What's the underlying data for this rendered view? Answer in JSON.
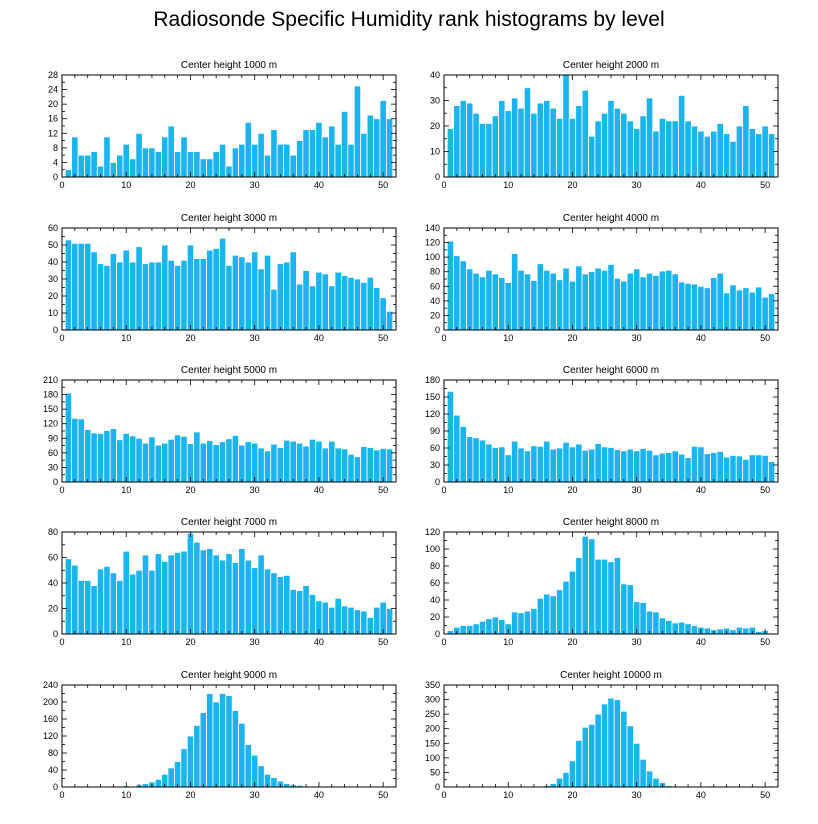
{
  "title": "Radiosonde Specific Humidity rank histograms by level",
  "colors": {
    "bar": "#1ab4ee",
    "axis": "#000000",
    "bar_gap": "#ffffff"
  },
  "chart_data": [
    {
      "type": "bar",
      "title": "Center height 1000 m",
      "xlabel": "",
      "ylabel": "",
      "xlim": [
        0,
        52
      ],
      "ylim": [
        0,
        28
      ],
      "xticks": [
        0,
        10,
        20,
        30,
        40,
        50
      ],
      "yticks": [
        0,
        4,
        8,
        12,
        16,
        20,
        24,
        28
      ],
      "categories": [
        1,
        2,
        3,
        4,
        5,
        6,
        7,
        8,
        9,
        10,
        11,
        12,
        13,
        14,
        15,
        16,
        17,
        18,
        19,
        20,
        21,
        22,
        23,
        24,
        25,
        26,
        27,
        28,
        29,
        30,
        31,
        32,
        33,
        34,
        35,
        36,
        37,
        38,
        39,
        40,
        41,
        42,
        43,
        44,
        45,
        46,
        47,
        48,
        49,
        50,
        51
      ],
      "values": [
        2,
        11,
        6,
        6,
        7,
        3,
        11,
        4,
        6,
        9,
        5,
        12,
        8,
        8,
        7,
        11,
        14,
        7,
        11,
        7,
        7,
        5,
        5,
        7,
        9,
        3,
        8,
        9,
        15,
        9,
        12,
        6,
        13,
        9,
        9,
        6,
        10,
        13,
        13,
        15,
        11,
        14,
        9,
        18,
        9,
        25,
        12,
        17,
        16,
        21,
        16
      ]
    },
    {
      "type": "bar",
      "title": "Center height 2000 m",
      "xlabel": "",
      "ylabel": "",
      "xlim": [
        0,
        52
      ],
      "ylim": [
        0,
        40
      ],
      "xticks": [
        0,
        10,
        20,
        30,
        40,
        50
      ],
      "yticks": [
        0,
        10,
        20,
        30,
        40
      ],
      "categories": [
        1,
        2,
        3,
        4,
        5,
        6,
        7,
        8,
        9,
        10,
        11,
        12,
        13,
        14,
        15,
        16,
        17,
        18,
        19,
        20,
        21,
        22,
        23,
        24,
        25,
        26,
        27,
        28,
        29,
        30,
        31,
        32,
        33,
        34,
        35,
        36,
        37,
        38,
        39,
        40,
        41,
        42,
        43,
        44,
        45,
        46,
        47,
        48,
        49,
        50,
        51
      ],
      "values": [
        19,
        28,
        30,
        29,
        25,
        21,
        21,
        24,
        30,
        26,
        31,
        27,
        35,
        25,
        29,
        30,
        27,
        23,
        40,
        23,
        28,
        34,
        16,
        22,
        25,
        30,
        27,
        25,
        22,
        19,
        24,
        31,
        18,
        23,
        22,
        22,
        32,
        22,
        20,
        18,
        16,
        18,
        21,
        17,
        14,
        20,
        28,
        19,
        17,
        20,
        17
      ]
    },
    {
      "type": "bar",
      "title": "Center height 3000 m",
      "xlabel": "",
      "ylabel": "",
      "xlim": [
        0,
        52
      ],
      "ylim": [
        0,
        60
      ],
      "xticks": [
        0,
        10,
        20,
        30,
        40,
        50
      ],
      "yticks": [
        0,
        10,
        20,
        30,
        40,
        50,
        60
      ],
      "categories": [
        1,
        2,
        3,
        4,
        5,
        6,
        7,
        8,
        9,
        10,
        11,
        12,
        13,
        14,
        15,
        16,
        17,
        18,
        19,
        20,
        21,
        22,
        23,
        24,
        25,
        26,
        27,
        28,
        29,
        30,
        31,
        32,
        33,
        34,
        35,
        36,
        37,
        38,
        39,
        40,
        41,
        42,
        43,
        44,
        45,
        46,
        47,
        48,
        49,
        50,
        51
      ],
      "values": [
        53,
        51,
        51,
        51,
        46,
        39,
        38,
        45,
        40,
        47,
        40,
        49,
        39,
        40,
        40,
        50,
        41,
        38,
        41,
        50,
        42,
        42,
        47,
        48,
        54,
        38,
        44,
        43,
        40,
        46,
        36,
        44,
        24,
        39,
        40,
        46,
        27,
        35,
        26,
        34,
        33,
        26,
        34,
        32,
        31,
        30,
        28,
        31,
        25,
        19,
        11
      ]
    },
    {
      "type": "bar",
      "title": "Center height 4000 m",
      "xlabel": "",
      "ylabel": "",
      "xlim": [
        0,
        52
      ],
      "ylim": [
        0,
        140
      ],
      "xticks": [
        0,
        10,
        20,
        30,
        40,
        50
      ],
      "yticks": [
        0,
        20,
        40,
        60,
        80,
        100,
        120,
        140
      ],
      "categories": [
        1,
        2,
        3,
        4,
        5,
        6,
        7,
        8,
        9,
        10,
        11,
        12,
        13,
        14,
        15,
        16,
        17,
        18,
        19,
        20,
        21,
        22,
        23,
        24,
        25,
        26,
        27,
        28,
        29,
        30,
        31,
        32,
        33,
        34,
        35,
        36,
        37,
        38,
        39,
        40,
        41,
        42,
        43,
        44,
        45,
        46,
        47,
        48,
        49,
        50,
        51
      ],
      "values": [
        122,
        102,
        95,
        84,
        78,
        73,
        82,
        77,
        72,
        65,
        105,
        82,
        77,
        68,
        91,
        82,
        78,
        69,
        85,
        67,
        88,
        77,
        80,
        85,
        82,
        90,
        71,
        67,
        78,
        84,
        73,
        78,
        75,
        81,
        82,
        77,
        66,
        64,
        63,
        60,
        58,
        72,
        78,
        51,
        62,
        55,
        58,
        52,
        59,
        45,
        50
      ]
    },
    {
      "type": "bar",
      "title": "Center height 5000 m",
      "xlabel": "",
      "ylabel": "",
      "xlim": [
        0,
        52
      ],
      "ylim": [
        0,
        210
      ],
      "xticks": [
        0,
        10,
        20,
        30,
        40,
        50
      ],
      "yticks": [
        0,
        30,
        60,
        90,
        120,
        150,
        180,
        210
      ],
      "categories": [
        1,
        2,
        3,
        4,
        5,
        6,
        7,
        8,
        9,
        10,
        11,
        12,
        13,
        14,
        15,
        16,
        17,
        18,
        19,
        20,
        21,
        22,
        23,
        24,
        25,
        26,
        27,
        28,
        29,
        30,
        31,
        32,
        33,
        34,
        35,
        36,
        37,
        38,
        39,
        40,
        41,
        42,
        43,
        44,
        45,
        46,
        47,
        48,
        49,
        50,
        51
      ],
      "values": [
        183,
        131,
        130,
        108,
        101,
        100,
        106,
        110,
        87,
        100,
        95,
        90,
        80,
        93,
        76,
        80,
        88,
        97,
        94,
        79,
        103,
        80,
        85,
        77,
        83,
        89,
        96,
        76,
        83,
        80,
        70,
        64,
        78,
        71,
        86,
        84,
        80,
        74,
        88,
        84,
        70,
        84,
        70,
        68,
        57,
        52,
        73,
        71,
        66,
        69,
        68
      ]
    },
    {
      "type": "bar",
      "title": "Center height 6000 m",
      "xlabel": "",
      "ylabel": "",
      "xlim": [
        0,
        52
      ],
      "ylim": [
        0,
        180
      ],
      "xticks": [
        0,
        10,
        20,
        30,
        40,
        50
      ],
      "yticks": [
        0,
        30,
        60,
        90,
        120,
        150,
        180
      ],
      "categories": [
        1,
        2,
        3,
        4,
        5,
        6,
        7,
        8,
        9,
        10,
        11,
        12,
        13,
        14,
        15,
        16,
        17,
        18,
        19,
        20,
        21,
        22,
        23,
        24,
        25,
        26,
        27,
        28,
        29,
        30,
        31,
        32,
        33,
        34,
        35,
        36,
        37,
        38,
        39,
        40,
        41,
        42,
        43,
        44,
        45,
        46,
        47,
        48,
        49,
        50,
        51
      ],
      "values": [
        160,
        118,
        98,
        80,
        78,
        74,
        67,
        61,
        62,
        48,
        72,
        60,
        55,
        64,
        63,
        72,
        58,
        60,
        70,
        62,
        67,
        56,
        58,
        68,
        62,
        61,
        57,
        55,
        58,
        55,
        59,
        56,
        48,
        51,
        52,
        55,
        49,
        43,
        63,
        62,
        50,
        52,
        54,
        44,
        47,
        46,
        40,
        48,
        48,
        47,
        36
      ]
    },
    {
      "type": "bar",
      "title": "Center height 7000 m",
      "xlabel": "",
      "ylabel": "",
      "xlim": [
        0,
        52
      ],
      "ylim": [
        0,
        80
      ],
      "xticks": [
        0,
        10,
        20,
        30,
        40,
        50
      ],
      "yticks": [
        0,
        20,
        40,
        60,
        80
      ],
      "categories": [
        1,
        2,
        3,
        4,
        5,
        6,
        7,
        8,
        9,
        10,
        11,
        12,
        13,
        14,
        15,
        16,
        17,
        18,
        19,
        20,
        21,
        22,
        23,
        24,
        25,
        26,
        27,
        28,
        29,
        30,
        31,
        32,
        33,
        34,
        35,
        36,
        37,
        38,
        39,
        40,
        41,
        42,
        43,
        44,
        45,
        46,
        47,
        48,
        49,
        50,
        51
      ],
      "values": [
        59,
        54,
        42,
        42,
        38,
        51,
        53,
        48,
        42,
        65,
        47,
        50,
        62,
        50,
        63,
        57,
        62,
        64,
        65,
        79,
        72,
        66,
        67,
        62,
        58,
        63,
        56,
        67,
        58,
        52,
        62,
        51,
        48,
        45,
        46,
        35,
        34,
        38,
        31,
        26,
        25,
        21,
        28,
        22,
        21,
        19,
        18,
        13,
        21,
        25,
        20
      ]
    },
    {
      "type": "bar",
      "title": "Center height 8000 m",
      "xlabel": "",
      "ylabel": "",
      "xlim": [
        0,
        52
      ],
      "ylim": [
        0,
        120
      ],
      "xticks": [
        0,
        10,
        20,
        30,
        40,
        50
      ],
      "yticks": [
        0,
        20,
        40,
        60,
        80,
        100,
        120
      ],
      "categories": [
        1,
        2,
        3,
        4,
        5,
        6,
        7,
        8,
        9,
        10,
        11,
        12,
        13,
        14,
        15,
        16,
        17,
        18,
        19,
        20,
        21,
        22,
        23,
        24,
        25,
        26,
        27,
        28,
        29,
        30,
        31,
        32,
        33,
        34,
        35,
        36,
        37,
        38,
        39,
        40,
        41,
        42,
        43,
        44,
        45,
        46,
        47,
        48,
        49,
        50,
        51
      ],
      "values": [
        4,
        8,
        10,
        10,
        12,
        15,
        18,
        20,
        17,
        12,
        26,
        25,
        27,
        30,
        42,
        47,
        45,
        52,
        62,
        74,
        90,
        115,
        112,
        88,
        88,
        85,
        90,
        59,
        58,
        38,
        37,
        27,
        26,
        19,
        16,
        13,
        14,
        12,
        10,
        8,
        7,
        5,
        6,
        7,
        5,
        8,
        7,
        8,
        3,
        4,
        1
      ]
    },
    {
      "type": "bar",
      "title": "Center height 9000 m",
      "xlabel": "",
      "ylabel": "",
      "xlim": [
        0,
        52
      ],
      "ylim": [
        0,
        240
      ],
      "xticks": [
        0,
        10,
        20,
        30,
        40,
        50
      ],
      "yticks": [
        0,
        40,
        80,
        120,
        160,
        200,
        240
      ],
      "categories": [
        1,
        2,
        3,
        4,
        5,
        6,
        7,
        8,
        9,
        10,
        11,
        12,
        13,
        14,
        15,
        16,
        17,
        18,
        19,
        20,
        21,
        22,
        23,
        24,
        25,
        26,
        27,
        28,
        29,
        30,
        31,
        32,
        33,
        34,
        35,
        36,
        37,
        38,
        39,
        40,
        41,
        42,
        43,
        44,
        45,
        46,
        47,
        48,
        49,
        50,
        51
      ],
      "values": [
        0,
        0,
        0,
        0,
        0,
        0,
        0,
        2,
        1,
        3,
        2,
        5,
        8,
        12,
        18,
        30,
        45,
        60,
        90,
        120,
        145,
        175,
        220,
        200,
        220,
        215,
        180,
        150,
        100,
        75,
        50,
        30,
        22,
        14,
        8,
        5,
        4,
        2,
        1,
        2,
        0,
        1,
        0,
        0,
        0,
        0,
        0,
        0,
        0,
        0,
        0
      ]
    },
    {
      "type": "bar",
      "title": "Center height 10000 m",
      "xlabel": "",
      "ylabel": "",
      "xlim": [
        0,
        52
      ],
      "ylim": [
        0,
        350
      ],
      "xticks": [
        0,
        10,
        20,
        30,
        40,
        50
      ],
      "yticks": [
        0,
        50,
        100,
        150,
        200,
        250,
        300,
        350
      ],
      "categories": [
        1,
        2,
        3,
        4,
        5,
        6,
        7,
        8,
        9,
        10,
        11,
        12,
        13,
        14,
        15,
        16,
        17,
        18,
        19,
        20,
        21,
        22,
        23,
        24,
        25,
        26,
        27,
        28,
        29,
        30,
        31,
        32,
        33,
        34,
        35,
        36,
        37,
        38,
        39,
        40,
        41,
        42,
        43,
        44,
        45,
        46,
        47,
        48,
        49,
        50,
        51
      ],
      "values": [
        0,
        0,
        0,
        0,
        0,
        0,
        0,
        0,
        0,
        0,
        0,
        0,
        0,
        0,
        3,
        5,
        12,
        30,
        50,
        90,
        160,
        205,
        215,
        250,
        285,
        305,
        300,
        260,
        210,
        150,
        95,
        55,
        30,
        15,
        5,
        2,
        1,
        0,
        0,
        0,
        0,
        0,
        0,
        0,
        0,
        0,
        0,
        0,
        0,
        0,
        0
      ]
    }
  ]
}
